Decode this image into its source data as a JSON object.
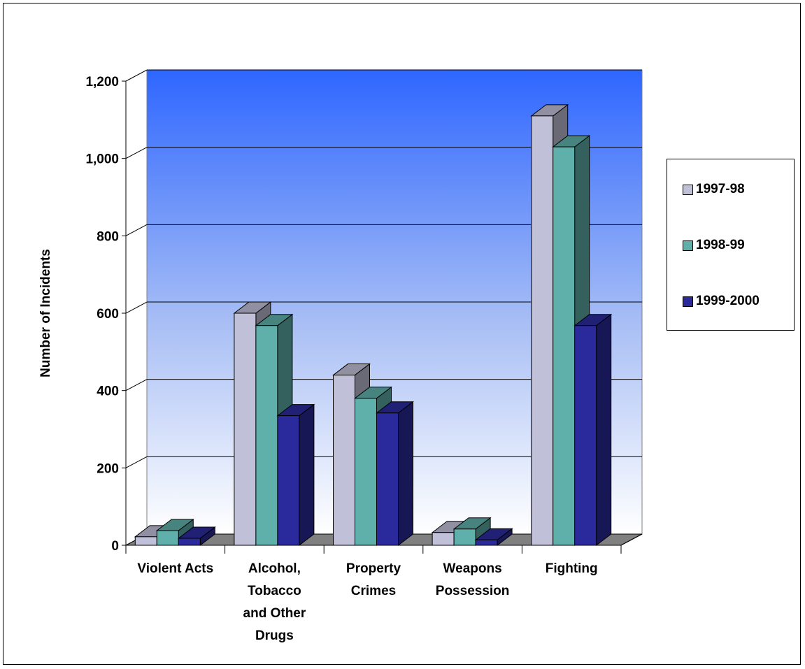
{
  "chart_data": {
    "type": "bar",
    "title": "",
    "xlabel": "",
    "ylabel": "Number of Incidents",
    "ylim": [
      0,
      1200
    ],
    "yticks": [
      0,
      200,
      400,
      600,
      800,
      1000,
      1200
    ],
    "ytick_labels": [
      "0",
      "200",
      "400",
      "600",
      "800",
      "1,000",
      "1,200"
    ],
    "grid": true,
    "legend_position": "right",
    "categories": [
      [
        "Violent Acts"
      ],
      [
        "Alcohol,",
        "Tobacco",
        "and Other",
        "Drugs"
      ],
      [
        "Property",
        "Crimes"
      ],
      [
        "Weapons",
        "Possession"
      ],
      [
        "Fighting"
      ]
    ],
    "series": [
      {
        "name": "1997-98",
        "values": [
          22,
          600,
          440,
          33,
          1110
        ],
        "color": "#C0C0D8"
      },
      {
        "name": "1998-99",
        "values": [
          38,
          568,
          380,
          42,
          1030
        ],
        "color": "#5FB0AA"
      },
      {
        "name": "1999-2000",
        "values": [
          18,
          335,
          342,
          14,
          568
        ],
        "color": "#2A2A9C"
      }
    ]
  }
}
